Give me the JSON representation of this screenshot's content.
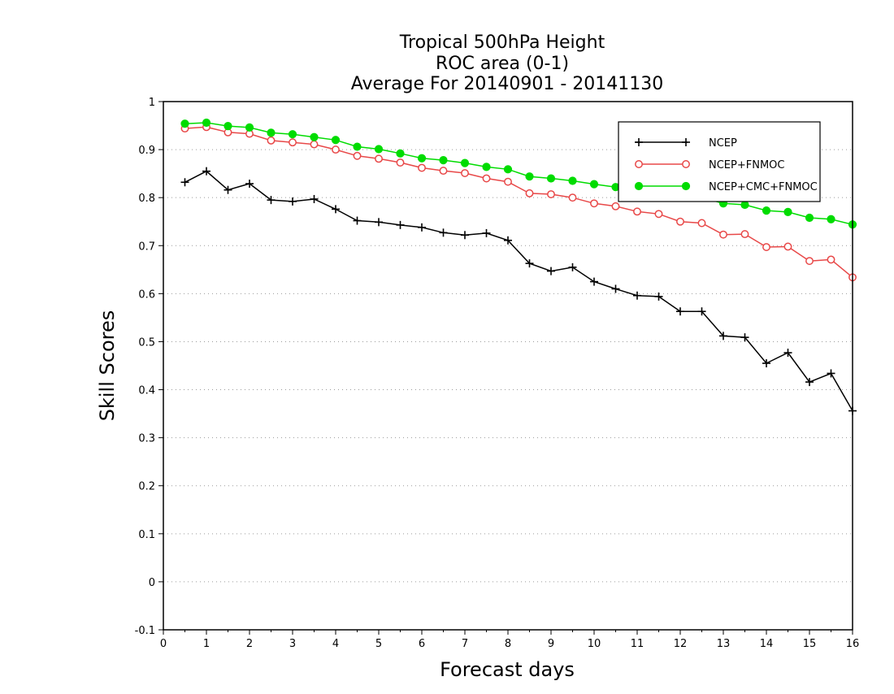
{
  "chart_data": {
    "type": "line",
    "title_lines": [
      "Tropical 500hPa Height",
      "ROC area (0-1)",
      "Average For 20140901 - 20141130"
    ],
    "xlabel": "Forecast days",
    "ylabel": "Skill Scores",
    "xlim": [
      0,
      16
    ],
    "ylim": [
      -0.1,
      1
    ],
    "x_ticks": [
      0,
      1,
      2,
      3,
      4,
      5,
      6,
      7,
      8,
      9,
      10,
      11,
      12,
      13,
      14,
      15,
      16
    ],
    "y_ticks": [
      -0.1,
      0,
      0.1,
      0.2,
      0.3,
      0.4,
      0.5,
      0.6,
      0.7,
      0.8,
      0.9,
      1
    ],
    "y_tick_labels": [
      "-0.1",
      "0",
      "0.1",
      "0.2",
      "0.3",
      "0.4",
      "0.5",
      "0.6",
      "0.7",
      "0.8",
      "0.9",
      "1"
    ],
    "grid": "horizontal dotted",
    "legend_position": "top-right",
    "x": [
      0.5,
      1,
      1.5,
      2,
      2.5,
      3,
      3.5,
      4,
      4.5,
      5,
      5.5,
      6,
      6.5,
      7,
      7.5,
      8,
      8.5,
      9,
      9.5,
      10,
      10.5,
      11,
      11.5,
      12,
      12.5,
      13,
      13.5,
      14,
      14.5,
      15,
      15.5,
      16
    ],
    "series": [
      {
        "name": "NCEP",
        "color": "#000000",
        "marker": "plus",
        "values": [
          0.832,
          0.855,
          0.816,
          0.829,
          0.795,
          0.792,
          0.797,
          0.776,
          0.752,
          0.749,
          0.743,
          0.738,
          0.727,
          0.722,
          0.726,
          0.711,
          0.663,
          0.647,
          0.655,
          0.625,
          0.61,
          0.596,
          0.594,
          0.563,
          0.563,
          0.512,
          0.509,
          0.455,
          0.477,
          0.416,
          0.434,
          0.356
        ]
      },
      {
        "name": "NCEP+FNMOC",
        "color": "#e84848",
        "marker": "open-circle",
        "values": [
          0.944,
          0.947,
          0.936,
          0.933,
          0.919,
          0.915,
          0.911,
          0.9,
          0.887,
          0.881,
          0.873,
          0.862,
          0.856,
          0.851,
          0.84,
          0.833,
          0.809,
          0.807,
          0.8,
          0.788,
          0.782,
          0.771,
          0.766,
          0.75,
          0.747,
          0.723,
          0.724,
          0.697,
          0.698,
          0.668,
          0.671,
          0.634
        ]
      },
      {
        "name": "NCEP+CMC+FNMOC",
        "color": "#00dc00",
        "marker": "filled-circle",
        "values": [
          0.954,
          0.956,
          0.949,
          0.946,
          0.935,
          0.932,
          0.926,
          0.92,
          0.906,
          0.901,
          0.892,
          0.882,
          0.878,
          0.872,
          0.864,
          0.859,
          0.844,
          0.84,
          0.835,
          0.828,
          0.822,
          0.818,
          0.812,
          0.806,
          0.8,
          0.788,
          0.785,
          0.773,
          0.77,
          0.758,
          0.755,
          0.744
        ]
      }
    ]
  }
}
